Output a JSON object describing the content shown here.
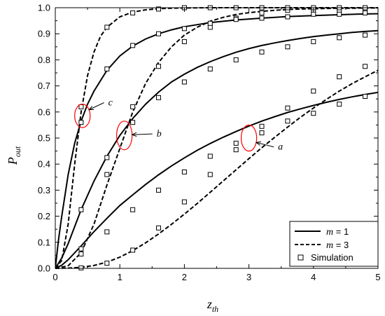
{
  "chart_data": {
    "type": "line",
    "xlabel": {
      "main": "z",
      "sub": "th"
    },
    "ylabel": {
      "main": "P",
      "sub": "out"
    },
    "xlim": [
      0,
      5
    ],
    "ylim": [
      0,
      1.0
    ],
    "xticks": [
      "0",
      "1",
      "2",
      "3",
      "4",
      "5"
    ],
    "yticks": [
      "0.0",
      "0.1",
      "0.2",
      "0.3",
      "0.4",
      "0.5",
      "0.6",
      "0.7",
      "0.8",
      "0.9",
      "1.0"
    ],
    "grid": false,
    "legend": {
      "position": "bottom-right",
      "entries": [
        {
          "symbol": "solid-line",
          "var": "m",
          "text": " = 1"
        },
        {
          "symbol": "dashed-line",
          "var": "m",
          "text": " = 3"
        },
        {
          "symbol": "square-marker",
          "var": "",
          "text": "Simulation"
        }
      ]
    },
    "series": [
      {
        "group": "a",
        "m": 1,
        "style": "solid",
        "x": [
          0,
          0.1,
          0.2,
          0.4,
          0.6,
          0.8,
          1.0,
          1.2,
          1.4,
          1.6,
          1.8,
          2.0,
          2.2,
          2.4,
          2.6,
          2.8,
          3.0,
          3.2,
          3.4,
          3.6,
          3.8,
          4.0,
          4.2,
          4.4,
          4.6,
          4.8,
          5.0
        ],
        "y": [
          0,
          0.012,
          0.033,
          0.086,
          0.141,
          0.192,
          0.241,
          0.282,
          0.322,
          0.359,
          0.393,
          0.424,
          0.453,
          0.479,
          0.503,
          0.525,
          0.546,
          0.565,
          0.582,
          0.598,
          0.612,
          0.625,
          0.637,
          0.648,
          0.658,
          0.667,
          0.675
        ],
        "markers_x": [
          0.4,
          0.8,
          1.2,
          1.6,
          2.0,
          2.4,
          2.8,
          3.2,
          3.6,
          4.0,
          4.4,
          4.8
        ],
        "markers_y": [
          0.055,
          0.14,
          0.225,
          0.3,
          0.37,
          0.43,
          0.48,
          0.52,
          0.565,
          0.595,
          0.63,
          0.66
        ]
      },
      {
        "group": "a",
        "m": 3,
        "style": "dashed",
        "x": [
          0,
          0.2,
          0.4,
          0.6,
          0.8,
          1.0,
          1.2,
          1.4,
          1.6,
          1.8,
          2.0,
          2.2,
          2.4,
          2.6,
          2.8,
          3.0,
          3.2,
          3.4,
          3.6,
          3.8,
          4.0,
          4.2,
          4.4,
          4.6,
          4.8,
          5.0
        ],
        "y": [
          0,
          0.001,
          0.004,
          0.011,
          0.024,
          0.043,
          0.068,
          0.098,
          0.132,
          0.169,
          0.208,
          0.249,
          0.292,
          0.335,
          0.378,
          0.421,
          0.463,
          0.503,
          0.542,
          0.58,
          0.615,
          0.648,
          0.68,
          0.709,
          0.735,
          0.76
        ],
        "markers_x": [
          0.4,
          0.8,
          1.2,
          1.6,
          2.0,
          2.4,
          2.8,
          3.2,
          3.6,
          4.0,
          4.4,
          4.8
        ],
        "markers_y": [
          0.002,
          0.02,
          0.07,
          0.155,
          0.255,
          0.36,
          0.455,
          0.545,
          0.615,
          0.68,
          0.735,
          0.775
        ]
      },
      {
        "group": "b",
        "m": 1,
        "style": "solid",
        "x": [
          0,
          0.1,
          0.2,
          0.4,
          0.6,
          0.8,
          1.0,
          1.2,
          1.4,
          1.6,
          1.8,
          2.0,
          2.2,
          2.4,
          2.6,
          2.8,
          3.0,
          3.2,
          3.4,
          3.6,
          3.8,
          4.0,
          4.2,
          4.4,
          4.6,
          4.8,
          5.0
        ],
        "y": [
          0,
          0.04,
          0.095,
          0.225,
          0.335,
          0.43,
          0.51,
          0.575,
          0.63,
          0.676,
          0.715,
          0.745,
          0.771,
          0.793,
          0.812,
          0.829,
          0.843,
          0.855,
          0.865,
          0.874,
          0.882,
          0.889,
          0.895,
          0.9,
          0.905,
          0.909,
          0.912
        ],
        "markers_x": [
          0.4,
          0.8,
          1.2,
          1.6,
          2.0,
          2.4,
          2.8,
          3.2,
          3.6,
          4.0,
          4.4,
          4.8
        ],
        "markers_y": [
          0.225,
          0.425,
          0.56,
          0.655,
          0.715,
          0.765,
          0.8,
          0.83,
          0.85,
          0.87,
          0.885,
          0.895
        ]
      },
      {
        "group": "b",
        "m": 3,
        "style": "dashed",
        "x": [
          0,
          0.2,
          0.4,
          0.6,
          0.8,
          1.0,
          1.2,
          1.4,
          1.6,
          1.8,
          2.0,
          2.2,
          2.4,
          2.6,
          2.8,
          3.0,
          3.2,
          3.4,
          3.6,
          3.8,
          4.0,
          4.2,
          4.4,
          4.6,
          4.8,
          5.0
        ],
        "y": [
          0,
          0.01,
          0.06,
          0.17,
          0.32,
          0.46,
          0.6,
          0.71,
          0.79,
          0.85,
          0.895,
          0.925,
          0.948,
          0.963,
          0.974,
          0.981,
          0.986,
          0.99,
          0.993,
          0.995,
          0.996,
          0.997,
          0.998,
          0.998,
          0.999,
          0.999
        ],
        "markers_x": [
          0.4,
          0.8,
          1.2,
          1.6,
          2.0,
          2.4,
          2.8,
          3.2,
          3.6,
          4.0,
          4.4,
          4.8
        ],
        "markers_y": [
          0.075,
          0.36,
          0.62,
          0.775,
          0.87,
          0.925,
          0.96,
          0.98,
          0.99,
          0.99,
          0.99,
          0.99
        ]
      },
      {
        "group": "c",
        "m": 1,
        "style": "solid",
        "x": [
          0,
          0.05,
          0.1,
          0.2,
          0.3,
          0.4,
          0.5,
          0.6,
          0.8,
          1.0,
          1.2,
          1.4,
          1.6,
          1.8,
          2.0,
          2.4,
          2.8,
          3.2,
          3.6,
          4.0,
          4.4,
          4.8,
          5.0
        ],
        "y": [
          0,
          0.11,
          0.2,
          0.36,
          0.48,
          0.565,
          0.63,
          0.68,
          0.76,
          0.815,
          0.853,
          0.88,
          0.9,
          0.915,
          0.927,
          0.943,
          0.953,
          0.96,
          0.966,
          0.97,
          0.973,
          0.976,
          0.977
        ],
        "markers_x": [
          0.4,
          0.8,
          1.2,
          1.6,
          2.0,
          2.4,
          2.8,
          3.2,
          3.6,
          4.0,
          4.4,
          4.8
        ],
        "markers_y": [
          0.56,
          0.765,
          0.855,
          0.9,
          0.92,
          0.94,
          0.955,
          0.96,
          0.965,
          0.975,
          0.975,
          0.98
        ]
      },
      {
        "group": "c",
        "m": 3,
        "style": "dashed",
        "x": [
          0,
          0.1,
          0.2,
          0.3,
          0.4,
          0.5,
          0.6,
          0.7,
          0.8,
          1.0,
          1.2,
          1.4,
          1.6,
          1.8,
          2.0,
          2.4,
          2.8,
          3.2,
          3.6,
          4.0,
          4.4,
          4.8,
          5.0
        ],
        "y": [
          0,
          0.03,
          0.17,
          0.4,
          0.6,
          0.74,
          0.83,
          0.89,
          0.925,
          0.965,
          0.983,
          0.992,
          0.996,
          0.998,
          0.999,
          1.0,
          1.0,
          1.0,
          1.0,
          1.0,
          1.0,
          1.0,
          1.0
        ],
        "markers_x": [
          0.4,
          0.8,
          1.2,
          1.6,
          2.0,
          2.4,
          2.8,
          3.2,
          3.6,
          4.0,
          4.4,
          4.8
        ],
        "markers_y": [
          0.62,
          0.925,
          0.98,
          0.995,
          1.0,
          1.0,
          1.0,
          1.0,
          1.0,
          1.0,
          1.0,
          1.0
        ]
      }
    ],
    "annotations": [
      {
        "label": "a",
        "ellipse_center": [
          3.0,
          0.5
        ],
        "ellipse_rx": 0.12,
        "ellipse_ry": 0.05,
        "text_pos": [
          3.45,
          0.455
        ]
      },
      {
        "label": "b",
        "ellipse_center": [
          1.07,
          0.51
        ],
        "ellipse_rx": 0.12,
        "ellipse_ry": 0.055,
        "text_pos": [
          1.57,
          0.505
        ]
      },
      {
        "label": "c",
        "ellipse_center": [
          0.42,
          0.585
        ],
        "ellipse_rx": 0.12,
        "ellipse_ry": 0.045,
        "text_pos": [
          0.82,
          0.625
        ]
      }
    ],
    "colors": {
      "line": "#000000",
      "annotation": "#ff0000"
    }
  }
}
